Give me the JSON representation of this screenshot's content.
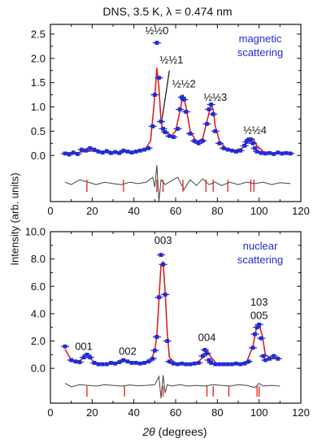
{
  "title": "DNS, 3.5 K, λ = 0.474 nm",
  "shared_ylabel": "Intensity (arb. units)",
  "shared_xlabel": "2θ (degrees)",
  "colors": {
    "data": "#1f2bd6",
    "fit": "#e01f1f",
    "difference": "#444444",
    "ticks": "#e01f1f",
    "annotation": "#1f2bd6"
  },
  "chart_data": [
    {
      "type": "scatter",
      "xlabel": "",
      "ylabel": "",
      "xlim": [
        0,
        120
      ],
      "ylim": [
        -0.95,
        2.7
      ],
      "xticks": [
        0,
        20,
        40,
        60,
        80,
        100,
        120
      ],
      "yticks": [
        0.0,
        0.5,
        1.0,
        1.5,
        2.0,
        2.5
      ],
      "ytick_labels": [
        "0.0",
        "0.5",
        "1.0",
        "1.5",
        "2.0",
        "2.5"
      ],
      "annotation": [
        "magnetic",
        "scattering"
      ],
      "series": [
        {
          "x": [
            7,
            9,
            11,
            13,
            15,
            17,
            19,
            21,
            23,
            25,
            27,
            29,
            31,
            33,
            35,
            37,
            39,
            41,
            43,
            45,
            47,
            49,
            50,
            51,
            52,
            53,
            54,
            55,
            57,
            59,
            61,
            62,
            63,
            64,
            65,
            67,
            69,
            71,
            73,
            75,
            76,
            77,
            78,
            79,
            81,
            83,
            85,
            87,
            89,
            91,
            93,
            94,
            95,
            96,
            97,
            98,
            99,
            101,
            103,
            105,
            107,
            109,
            111,
            113,
            115
          ],
          "values": [
            0.04,
            0.02,
            0.06,
            0.03,
            0.12,
            0.1,
            0.15,
            0.12,
            0.08,
            0.06,
            0.09,
            0.05,
            0.07,
            0.05,
            0.1,
            0.08,
            0.06,
            0.08,
            0.1,
            0.12,
            0.15,
            0.6,
            1.25,
            2.32,
            1.6,
            0.7,
            0.55,
            0.48,
            0.4,
            0.38,
            0.55,
            0.95,
            1.2,
            1.15,
            0.9,
            0.45,
            0.3,
            0.25,
            0.3,
            0.65,
            0.95,
            1.05,
            0.85,
            0.5,
            0.25,
            0.15,
            0.12,
            0.1,
            0.08,
            0.1,
            0.2,
            0.28,
            0.33,
            0.33,
            0.25,
            0.15,
            0.08,
            0.05,
            0.04,
            0.05,
            0.03,
            0.06,
            0.04,
            0.05,
            0.04
          ]
        },
        {
          "x": [
            7,
            12,
            16,
            20,
            25,
            30,
            35,
            40,
            45,
            48,
            50,
            51,
            52,
            53,
            54,
            55,
            58,
            60,
            62,
            63.5,
            65,
            67,
            70,
            73,
            75,
            77,
            78,
            79,
            81,
            84,
            88,
            92,
            95,
            97,
            99,
            102,
            106,
            110,
            115
          ],
          "values": [
            0.06,
            0.05,
            0.08,
            0.09,
            0.07,
            0.07,
            0.08,
            0.08,
            0.1,
            0.3,
            1.2,
            1.8,
            1.4,
            0.7,
            0.5,
            0.5,
            0.4,
            0.5,
            0.9,
            1.25,
            1.0,
            0.5,
            0.28,
            0.35,
            0.7,
            1.05,
            0.95,
            0.6,
            0.3,
            0.15,
            0.1,
            0.15,
            0.3,
            0.35,
            0.2,
            0.08,
            0.05,
            0.05,
            0.05
          ]
        },
        {
          "x": [
            7,
            10,
            14,
            18,
            22,
            26,
            30,
            34,
            38,
            42,
            46,
            49,
            50,
            51,
            52,
            53,
            55,
            58,
            61,
            64,
            67,
            70,
            73,
            76,
            79,
            82,
            86,
            90,
            94,
            98,
            102,
            106,
            110,
            115
          ],
          "values": [
            -0.55,
            -0.6,
            -0.5,
            -0.55,
            -0.6,
            -0.55,
            -0.58,
            -0.6,
            -0.55,
            -0.58,
            -0.55,
            -0.45,
            -0.65,
            -0.2,
            -0.95,
            -0.5,
            -0.6,
            -0.52,
            -0.45,
            -0.7,
            -0.5,
            -0.62,
            -0.48,
            -0.6,
            -0.55,
            -0.62,
            -0.55,
            -0.6,
            -0.55,
            -0.58,
            -0.55,
            -0.6,
            -0.56,
            -0.58
          ]
        }
      ],
      "tick_marks": [
        17.5,
        35,
        51,
        54,
        63.5,
        74.5,
        78,
        85,
        96,
        97.5
      ],
      "peak_labels": [
        {
          "text": "½½0",
          "x": 51,
          "y": 2.5
        },
        {
          "text": "½½1",
          "x": 58,
          "y": 1.9
        },
        {
          "text": "½½2",
          "x": 64,
          "y": 1.4
        },
        {
          "text": "½½3",
          "x": 79,
          "y": 1.13
        },
        {
          "text": "½½4",
          "x": 98,
          "y": 0.45
        }
      ]
    },
    {
      "type": "scatter",
      "xlabel": "",
      "ylabel": "",
      "xlim": [
        0,
        120
      ],
      "ylim": [
        -2.55,
        10.0
      ],
      "xticks": [
        0,
        20,
        40,
        60,
        80,
        100,
        120
      ],
      "yticks": [
        0.0,
        2.0,
        4.0,
        6.0,
        8.0,
        10.0
      ],
      "ytick_labels": [
        "0.0",
        "2.0",
        "4.0",
        "6.0",
        "8.0",
        "10.0"
      ],
      "annotation": [
        "nuclear",
        "scattering"
      ],
      "series": [
        {
          "x": [
            7,
            10,
            12,
            14,
            16,
            17.5,
            19,
            21,
            23,
            25,
            27,
            29,
            31,
            33,
            35,
            37,
            39,
            41,
            43,
            45,
            47,
            49,
            50,
            51,
            52,
            53,
            54,
            55,
            56,
            57,
            59,
            61,
            63,
            65,
            67,
            69,
            71,
            73,
            74,
            75,
            76,
            77,
            79,
            81,
            83,
            85,
            87,
            89,
            91,
            93,
            95,
            97,
            98,
            99,
            100,
            101,
            102,
            103,
            105,
            107,
            109
          ],
          "values": [
            1.6,
            0.6,
            0.5,
            0.45,
            0.8,
            1.0,
            0.8,
            0.4,
            0.3,
            0.3,
            0.3,
            0.4,
            0.35,
            0.45,
            0.6,
            0.5,
            0.4,
            0.4,
            0.35,
            0.4,
            0.5,
            0.7,
            1.3,
            2.3,
            5.2,
            8.3,
            7.6,
            5.4,
            2.0,
            0.5,
            0.35,
            0.3,
            0.35,
            0.3,
            0.3,
            0.35,
            0.4,
            0.9,
            1.35,
            1.1,
            0.6,
            0.4,
            0.3,
            0.3,
            0.3,
            0.3,
            0.3,
            0.35,
            0.3,
            0.35,
            0.5,
            1.5,
            2.5,
            3.0,
            3.2,
            2.2,
            0.9,
            0.6,
            0.7,
            0.9,
            0.7
          ]
        },
        {
          "x": [
            7,
            10,
            14,
            17.5,
            21,
            26,
            30,
            35,
            40,
            45,
            48,
            50,
            51,
            52,
            53,
            54,
            55,
            56,
            57,
            60,
            65,
            70,
            73,
            75,
            77,
            80,
            85,
            90,
            94,
            97,
            98.5,
            100,
            101.5,
            103,
            106,
            110
          ],
          "values": [
            1.4,
            0.6,
            0.55,
            1.0,
            0.45,
            0.3,
            0.35,
            0.55,
            0.4,
            0.38,
            0.55,
            1.3,
            2.4,
            5.0,
            7.6,
            7.8,
            5.5,
            2.6,
            0.8,
            0.35,
            0.3,
            0.35,
            0.8,
            1.3,
            0.8,
            0.3,
            0.3,
            0.3,
            0.45,
            1.6,
            2.8,
            3.2,
            2.4,
            1.0,
            0.7,
            0.7
          ]
        },
        {
          "x": [
            7,
            10,
            14,
            18,
            22,
            26,
            30,
            34,
            38,
            42,
            46,
            50,
            52,
            53,
            54,
            55,
            56,
            58,
            62,
            66,
            70,
            74,
            78,
            82,
            86,
            90,
            94,
            98,
            100,
            102,
            106,
            110
          ],
          "values": [
            -1.1,
            -1.35,
            -1.2,
            -1.25,
            -1.3,
            -1.2,
            -1.25,
            -1.3,
            -1.22,
            -1.28,
            -1.25,
            -1.2,
            -0.6,
            -2.2,
            -0.5,
            -1.8,
            -1.2,
            -1.3,
            -1.2,
            -1.3,
            -1.25,
            -1.3,
            -1.2,
            -1.25,
            -1.3,
            -1.2,
            -1.25,
            -1.4,
            -1.1,
            -1.3,
            -1.25,
            -1.3
          ]
        }
      ],
      "tick_marks": [
        17.5,
        35.5,
        54,
        75,
        78,
        85.5,
        99,
        100
      ],
      "peak_labels": [
        {
          "text": "001",
          "x": 16,
          "y": 1.35
        },
        {
          "text": "002",
          "x": 37,
          "y": 1.0
        },
        {
          "text": "003",
          "x": 54,
          "y": 9.1
        },
        {
          "text": "004",
          "x": 75,
          "y": 2.0
        },
        {
          "text": "103",
          "x": 100,
          "y": 4.6
        },
        {
          "text": "005",
          "x": 100,
          "y": 3.6
        }
      ]
    }
  ]
}
